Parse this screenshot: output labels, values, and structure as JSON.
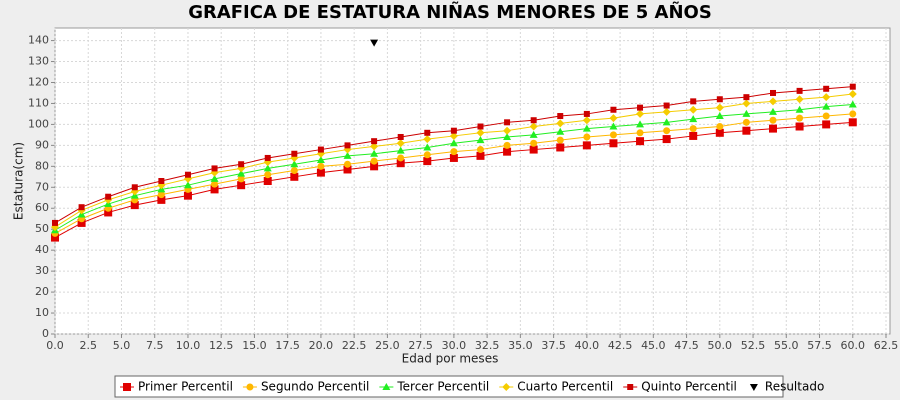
{
  "chart_data": {
    "type": "line",
    "title": "GRAFICA DE ESTATURA NIÑAS MENORES DE 5 AÑOS",
    "x_label": "Edad por meses",
    "y_label": "Estatura(cm)",
    "grid": true,
    "xlim": [
      0,
      62.8
    ],
    "ylim": [
      0,
      146
    ],
    "xticks": [
      {
        "value": 0,
        "label": "0.0"
      },
      2.5,
      {
        "value": 5,
        "label": "5.0"
      },
      7.5,
      {
        "value": 10,
        "label": "10.0"
      },
      12.5,
      {
        "value": 15,
        "label": "15.0"
      },
      17.5,
      {
        "value": 20,
        "label": "20.0"
      },
      22.5,
      {
        "value": 25,
        "label": "25.0"
      },
      27.5,
      {
        "value": 30,
        "label": "30.0"
      },
      32.5,
      {
        "value": 35,
        "label": "35.0"
      },
      37.5,
      {
        "value": 40,
        "label": "40.0"
      },
      42.5,
      {
        "value": 45,
        "label": "45.0"
      },
      47.5,
      {
        "value": 50,
        "label": "50.0"
      },
      52.5,
      {
        "value": 55,
        "label": "55.0"
      },
      57.5,
      {
        "value": 60,
        "label": "60.0"
      },
      62.5
    ],
    "yticks": [
      0,
      10,
      20,
      30,
      40,
      50,
      60,
      70,
      80,
      90,
      100,
      110,
      120,
      130,
      140
    ],
    "x": [
      0,
      2,
      4,
      6,
      8,
      10,
      12,
      14,
      16,
      18,
      20,
      22,
      24,
      26,
      28,
      30,
      32,
      34,
      36,
      38,
      40,
      42,
      44,
      46,
      48,
      50,
      52,
      54,
      56,
      58,
      60
    ],
    "series": [
      {
        "name": "Primer Percentil",
        "color": "#e00000",
        "marker": "square",
        "values": [
          46,
          53,
          58,
          61.5,
          64,
          66,
          69,
          71,
          73,
          75,
          77,
          78.5,
          80,
          81.5,
          82.5,
          84,
          85,
          87,
          88,
          89,
          90,
          91,
          92,
          93,
          94.5,
          96,
          97,
          98,
          99,
          100,
          101
        ]
      },
      {
        "name": "Segundo Percentil",
        "color": "#ffb800",
        "marker": "circle",
        "values": [
          48,
          55,
          60,
          64,
          66.5,
          69,
          71.5,
          74,
          76,
          78,
          80,
          81,
          82.5,
          84,
          85.5,
          87,
          88,
          90,
          91,
          92.5,
          94,
          95,
          96,
          97,
          98,
          99,
          101,
          102,
          103,
          104,
          105
        ]
      },
      {
        "name": "Tercer Percentil",
        "color": "#22ee22",
        "marker": "triangle",
        "values": [
          49.5,
          57,
          62,
          66,
          69,
          71,
          74,
          76.5,
          79,
          81,
          83,
          85,
          86,
          87.5,
          89,
          91,
          92.5,
          94,
          95,
          96.5,
          98,
          99,
          100,
          101,
          102.5,
          104,
          105,
          106,
          107,
          108.5,
          109.5
        ]
      },
      {
        "name": "Cuarto Percentil",
        "color": "#f5cc00",
        "marker": "diamond",
        "values": [
          51,
          59,
          64,
          68,
          71,
          74,
          77,
          79,
          82,
          84,
          86,
          88,
          89.5,
          91,
          93,
          94.5,
          96,
          97,
          99,
          100.5,
          102,
          103,
          105,
          106,
          107,
          108,
          110,
          111,
          112,
          113,
          114.5
        ]
      },
      {
        "name": "Quinto Percentil",
        "color": "#cc0000",
        "marker": "small-square",
        "values": [
          53,
          60.5,
          65.5,
          70,
          73,
          76,
          79,
          81,
          84,
          86,
          88,
          90,
          92,
          94,
          96,
          97,
          99,
          101,
          102,
          104,
          105,
          107,
          108,
          109,
          111,
          112,
          113,
          115,
          116,
          117,
          118
        ]
      },
      {
        "name": "Resultado",
        "color": "#000000",
        "marker": "triangle-down",
        "x": [
          24
        ],
        "values": [
          139
        ]
      }
    ]
  }
}
